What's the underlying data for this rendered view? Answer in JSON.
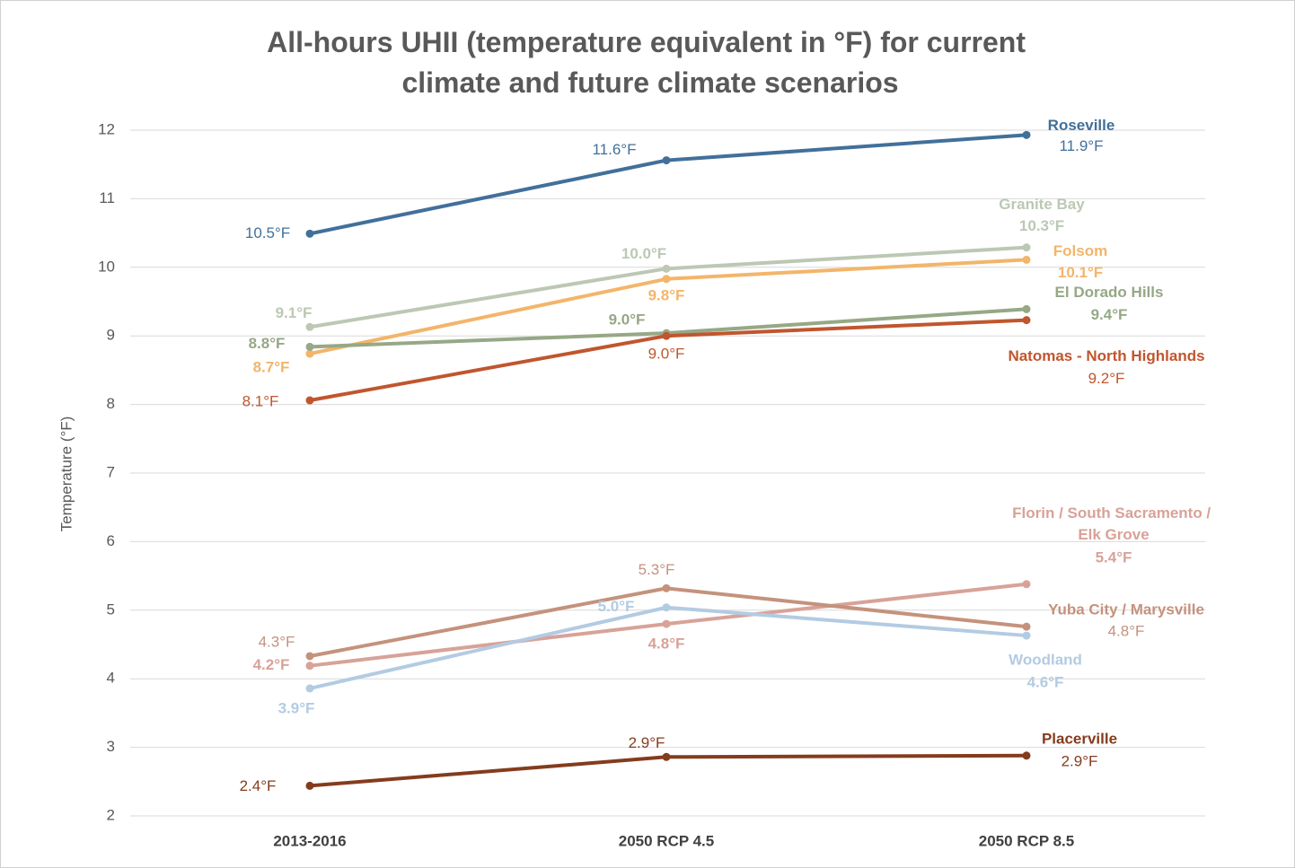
{
  "chart_data": {
    "type": "line",
    "title": "All-hours UHII (temperature equivalent in °F) for current climate and future climate scenarios",
    "y_label": "Temperature (°F)",
    "categories": [
      "2013-2016",
      "2050 RCP 4.5",
      "2050 RCP 8.5"
    ],
    "ylim": [
      2,
      12
    ],
    "yticks": [
      2,
      3,
      4,
      5,
      6,
      7,
      8,
      9,
      10,
      11,
      12
    ],
    "grid": true,
    "series": [
      {
        "name": "Roseville",
        "color": "#41709a",
        "values": [
          10.49,
          11.56,
          11.93
        ],
        "value_labels": [
          "10.5°F",
          "11.6°F",
          "11.9°F"
        ]
      },
      {
        "name": "Granite Bay",
        "color": "#bcc8b3",
        "values": [
          9.13,
          9.98,
          10.29
        ],
        "value_labels": [
          "9.1°F",
          "10.0°F",
          "10.3°F"
        ]
      },
      {
        "name": "Folsom",
        "color": "#f3b56a",
        "values": [
          8.74,
          9.83,
          10.11
        ],
        "value_labels": [
          "8.7°F",
          "9.8°F",
          "10.1°F"
        ]
      },
      {
        "name": "El Dorado Hills",
        "color": "#96a886",
        "values": [
          8.84,
          9.04,
          9.39
        ],
        "value_labels": [
          "8.8°F",
          "9.0°F",
          "9.4°F"
        ]
      },
      {
        "name": "Natomas - North Highlands",
        "color": "#c0562e",
        "values": [
          8.06,
          9.0,
          9.23
        ],
        "value_labels": [
          "8.1°F",
          "9.0°F",
          "9.2°F"
        ]
      },
      {
        "name": "Florin / South Sacramento / Elk Grove",
        "color": "#d8a298",
        "values": [
          4.19,
          4.8,
          5.38
        ],
        "value_labels": [
          "4.2°F",
          "4.8°F",
          "5.4°F"
        ]
      },
      {
        "name": "Yuba City / Marysville",
        "color": "#c4927c",
        "values": [
          4.33,
          5.32,
          4.76
        ],
        "value_labels": [
          "4.3°F",
          "5.3°F",
          "4.8°F"
        ]
      },
      {
        "name": "Woodland",
        "color": "#b3cbe2",
        "values": [
          3.86,
          5.04,
          4.63
        ],
        "value_labels": [
          "3.9°F",
          "5.0°F",
          "4.6°F"
        ]
      },
      {
        "name": "Placerville",
        "color": "#843c1d",
        "values": [
          2.44,
          2.86,
          2.88
        ],
        "value_labels": [
          "2.4°F",
          "2.9°F",
          "2.9°F"
        ]
      }
    ]
  }
}
